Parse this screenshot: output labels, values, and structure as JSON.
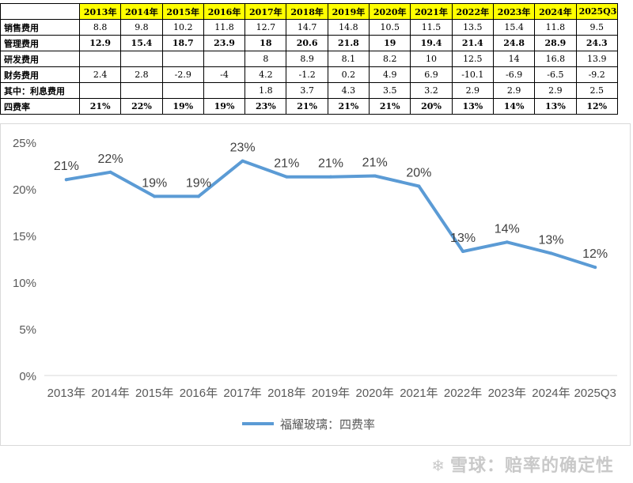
{
  "table": {
    "headers": [
      "2013年",
      "2014年",
      "2015年",
      "2016年",
      "2017年",
      "2018年",
      "2019年",
      "2020年",
      "2021年",
      "2022年",
      "2023年",
      "2024年",
      "2025Q3"
    ],
    "rows": [
      {
        "label": "销售费用",
        "bold": false,
        "values": [
          "8.8",
          "9.8",
          "10.2",
          "11.8",
          "12.7",
          "14.7",
          "14.8",
          "10.5",
          "11.5",
          "13.5",
          "15.4",
          "11.8",
          "9.5"
        ]
      },
      {
        "label": "管理费用",
        "bold": true,
        "values": [
          "12.9",
          "15.4",
          "18.7",
          "23.9",
          "18",
          "20.6",
          "21.8",
          "19",
          "19.4",
          "21.4",
          "24.8",
          "28.9",
          "24.3"
        ]
      },
      {
        "label": "研发费用",
        "bold": false,
        "values": [
          "",
          "",
          "",
          "",
          "8",
          "8.9",
          "8.1",
          "8.2",
          "10",
          "12.5",
          "14",
          "16.8",
          "13.9"
        ]
      },
      {
        "label": "财务费用",
        "bold": false,
        "values": [
          "2.4",
          "2.8",
          "-2.9",
          "-4",
          "4.2",
          "-1.2",
          "0.2",
          "4.9",
          "6.9",
          "-10.1",
          "-6.9",
          "-6.5",
          "-9.2"
        ]
      },
      {
        "label": "其中：利息费用",
        "bold": false,
        "values": [
          "",
          "",
          "",
          "",
          "1.8",
          "3.7",
          "4.3",
          "3.5",
          "3.2",
          "2.9",
          "2.9",
          "2.9",
          "2.5"
        ]
      },
      {
        "label": "四费率",
        "bold": true,
        "values": [
          "21%",
          "22%",
          "19%",
          "19%",
          "23%",
          "21%",
          "21%",
          "21%",
          "20%",
          "13%",
          "14%",
          "13%",
          "12%"
        ]
      }
    ]
  },
  "chart_data": {
    "type": "line",
    "categories": [
      "2013年",
      "2014年",
      "2015年",
      "2016年",
      "2017年",
      "2018年",
      "2019年",
      "2020年",
      "2021年",
      "2022年",
      "2023年",
      "2024年",
      "2025Q3"
    ],
    "series": [
      {
        "name": "福耀玻璃：四费率",
        "values": [
          21.0,
          21.8,
          19.2,
          19.2,
          23.0,
          21.3,
          21.3,
          21.4,
          20.3,
          13.3,
          14.3,
          13.1,
          11.6
        ],
        "labels": [
          "21%",
          "22%",
          "19%",
          "19%",
          "23%",
          "21%",
          "21%",
          "21%",
          "20%",
          "13%",
          "14%",
          "13%",
          "12%"
        ],
        "color": "#5b9bd5"
      }
    ],
    "ylim": [
      0,
      25
    ],
    "yticks": [
      "0%",
      "5%",
      "10%",
      "15%",
      "20%",
      "25%"
    ],
    "legend_position": "bottom",
    "grid": false
  },
  "watermark": {
    "text": "雪球：赔率的确定性"
  }
}
